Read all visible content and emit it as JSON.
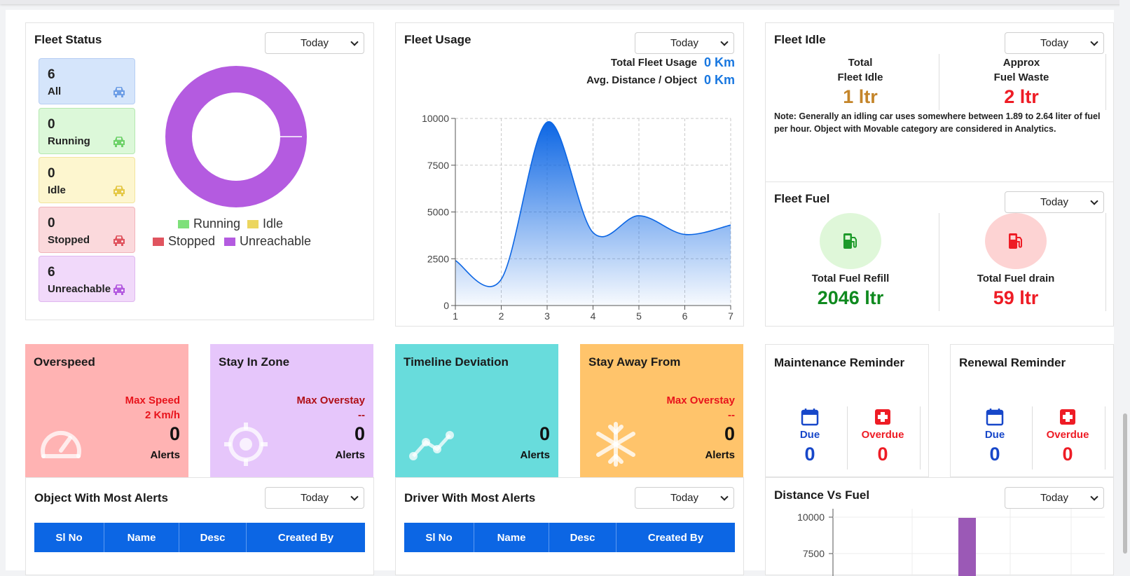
{
  "fleet_status": {
    "title": "Fleet Status",
    "period": "Today",
    "tiles": [
      {
        "count": "6",
        "label": "All",
        "bg": "#d5e5fb",
        "border": "#b6cdf3",
        "icon_color": "#6f9fe6"
      },
      {
        "count": "0",
        "label": "Running",
        "bg": "#dcf8d9",
        "border": "#b5e8b0",
        "icon_color": "#6fd26a"
      },
      {
        "count": "0",
        "label": "Idle",
        "bg": "#fdf6cf",
        "border": "#f1e49d",
        "icon_color": "#e5c948"
      },
      {
        "count": "0",
        "label": "Stopped",
        "bg": "#fbd9dc",
        "border": "#f1b4ba",
        "icon_color": "#e0545f"
      },
      {
        "count": "6",
        "label": "Unreachable",
        "bg": "#f1d9fa",
        "border": "#dfb7ef",
        "icon_color": "#b45be0"
      }
    ],
    "legend": [
      {
        "label": "Running",
        "color": "#7ee07a"
      },
      {
        "label": "Idle",
        "color": "#ecd65f"
      },
      {
        "label": "Stopped",
        "color": "#e0545f"
      },
      {
        "label": "Unreachable",
        "color": "#b45be0"
      }
    ],
    "donut_color": "#b45be0"
  },
  "fleet_usage": {
    "title": "Fleet Usage",
    "period": "Today",
    "total_label": "Total Fleet Usage",
    "total_value": "0 Km",
    "avg_label": "Avg. Distance / Object",
    "avg_value": "0 Km"
  },
  "chart_data": {
    "type": "area",
    "title": "Fleet Usage",
    "x": [
      1,
      2,
      3,
      4,
      5,
      6,
      7
    ],
    "y": [
      2400,
      1400,
      9800,
      3900,
      4800,
      3800,
      4300
    ],
    "xlabel": "",
    "ylabel": "",
    "ylim": [
      0,
      10000
    ],
    "yticks": [
      0,
      2500,
      5000,
      7500,
      10000
    ],
    "xticks": [
      1,
      2,
      3,
      4,
      5,
      6,
      7
    ],
    "grid": true,
    "color": "#0c66e4"
  },
  "fleet_idle": {
    "title": "Fleet Idle",
    "period": "Today",
    "left_label1": "Total",
    "left_label2": "Fleet Idle",
    "left_value": "1 ltr",
    "right_label1": "Approx",
    "right_label2": "Fuel Waste",
    "right_value": "2 ltr",
    "note": "Note: Generally an idling car uses somewhere between 1.89 to 2.64 liter of fuel per hour. Object with Movable category are considered in Analytics."
  },
  "fleet_fuel": {
    "title": "Fleet Fuel",
    "period": "Today",
    "refill_label": "Total Fuel Refill",
    "refill_value": "2046 ltr",
    "drain_label": "Total Fuel drain",
    "drain_value": "59 ltr"
  },
  "alerts": {
    "overspeed": {
      "title": "Overspeed",
      "meta_label": "Max Speed",
      "meta_value": "2 Km/h",
      "count": "0",
      "unit": "Alerts",
      "bg": "#ffb3b3"
    },
    "stay_in_zone": {
      "title": "Stay In Zone",
      "meta_label": "Max Overstay",
      "meta_value": "--",
      "count": "0",
      "unit": "Alerts",
      "bg": "#e6c6fb"
    },
    "timeline": {
      "title": "Timeline Deviation",
      "count": "0",
      "unit": "Alerts",
      "bg": "#68dcdc"
    },
    "stay_away": {
      "title": "Stay Away From",
      "meta_label": "Max Overstay",
      "meta_value": "--",
      "count": "0",
      "unit": "Alerts",
      "bg": "#ffc46b"
    }
  },
  "maintenance": {
    "title": "Maintenance Reminder",
    "due_label": "Due",
    "due_value": "0",
    "overdue_label": "Overdue",
    "overdue_value": "0"
  },
  "renewal": {
    "title": "Renewal Reminder",
    "due_label": "Due",
    "due_value": "0",
    "overdue_label": "Overdue",
    "overdue_value": "0"
  },
  "object_alerts": {
    "title": "Object With Most Alerts",
    "period": "Today",
    "columns": [
      "Sl No",
      "Name",
      "Desc",
      "Created By"
    ]
  },
  "driver_alerts": {
    "title": "Driver With Most Alerts",
    "period": "Today",
    "columns": [
      "Sl No",
      "Name",
      "Desc",
      "Created By"
    ]
  },
  "distance_fuel": {
    "title": "Distance Vs Fuel",
    "period": "Today",
    "tick_top": "10000",
    "tick_second": "7500"
  }
}
